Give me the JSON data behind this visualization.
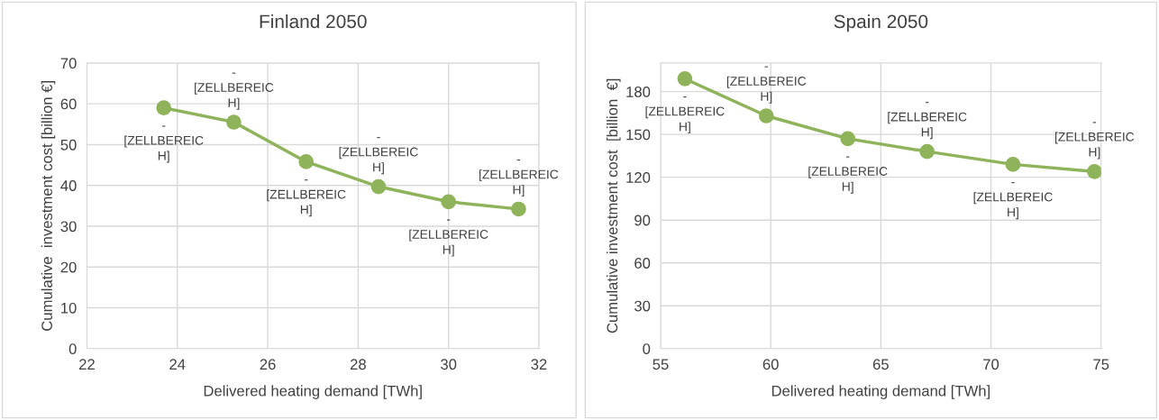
{
  "chart_data": [
    {
      "type": "line",
      "title": "Finland 2050",
      "xlabel": "Delivered heating demand [TWh]",
      "ylabel": "Cumulative  investment cost [billion €]",
      "x": [
        23.7,
        25.25,
        26.85,
        28.45,
        30.0,
        31.55
      ],
      "series": [
        {
          "color": "#8fb35a",
          "values": [
            59,
            55.5,
            45.8,
            39.7,
            36,
            34.2
          ],
          "value_labels": [
            "-\n[ZELLBEREIC\nH]",
            "-\n[ZELLBEREIC\nH]",
            "-\n[ZELLBEREIC\nH]",
            "-\n[ZELLBEREIC\nH]",
            "-\n[ZELLBEREIC\nH]",
            "-\n[ZELLBEREIC\nH]"
          ]
        }
      ],
      "xlim": [
        22,
        32
      ],
      "xticks": [
        22,
        24,
        26,
        28,
        30,
        32
      ],
      "ylim": [
        0,
        70
      ],
      "yticks": [
        0,
        10,
        20,
        30,
        40,
        50,
        60,
        70
      ],
      "grid": true,
      "marker": "circle",
      "line_style": "solid"
    },
    {
      "type": "line",
      "title": "Spain 2050",
      "xlabel": "Delivered heating demand [TWh]",
      "ylabel": "Cumulative investment cost  [billion  €]",
      "x": [
        56.1,
        59.8,
        63.5,
        67.1,
        71.0,
        74.7
      ],
      "series": [
        {
          "color": "#8fb35a",
          "values": [
            189,
            163,
            147,
            138,
            129,
            124
          ],
          "value_labels": [
            "-\n[ZELLBEREIC\nH]",
            "-\n[ZELLBEREIC\nH]",
            "-\n[ZELLBEREIC\nH]",
            "-\n[ZELLBEREIC\nH]",
            "-\n[ZELLBEREIC\nH]",
            "-\n[ZELLBEREIC\nH]"
          ]
        }
      ],
      "xlim": [
        55,
        75
      ],
      "xticks": [
        55,
        60,
        65,
        70,
        75
      ],
      "ylim": [
        0,
        200
      ],
      "yticks": [
        0,
        30,
        60,
        90,
        120,
        150,
        180
      ],
      "grid": true,
      "marker": "circle",
      "line_style": "solid"
    }
  ]
}
